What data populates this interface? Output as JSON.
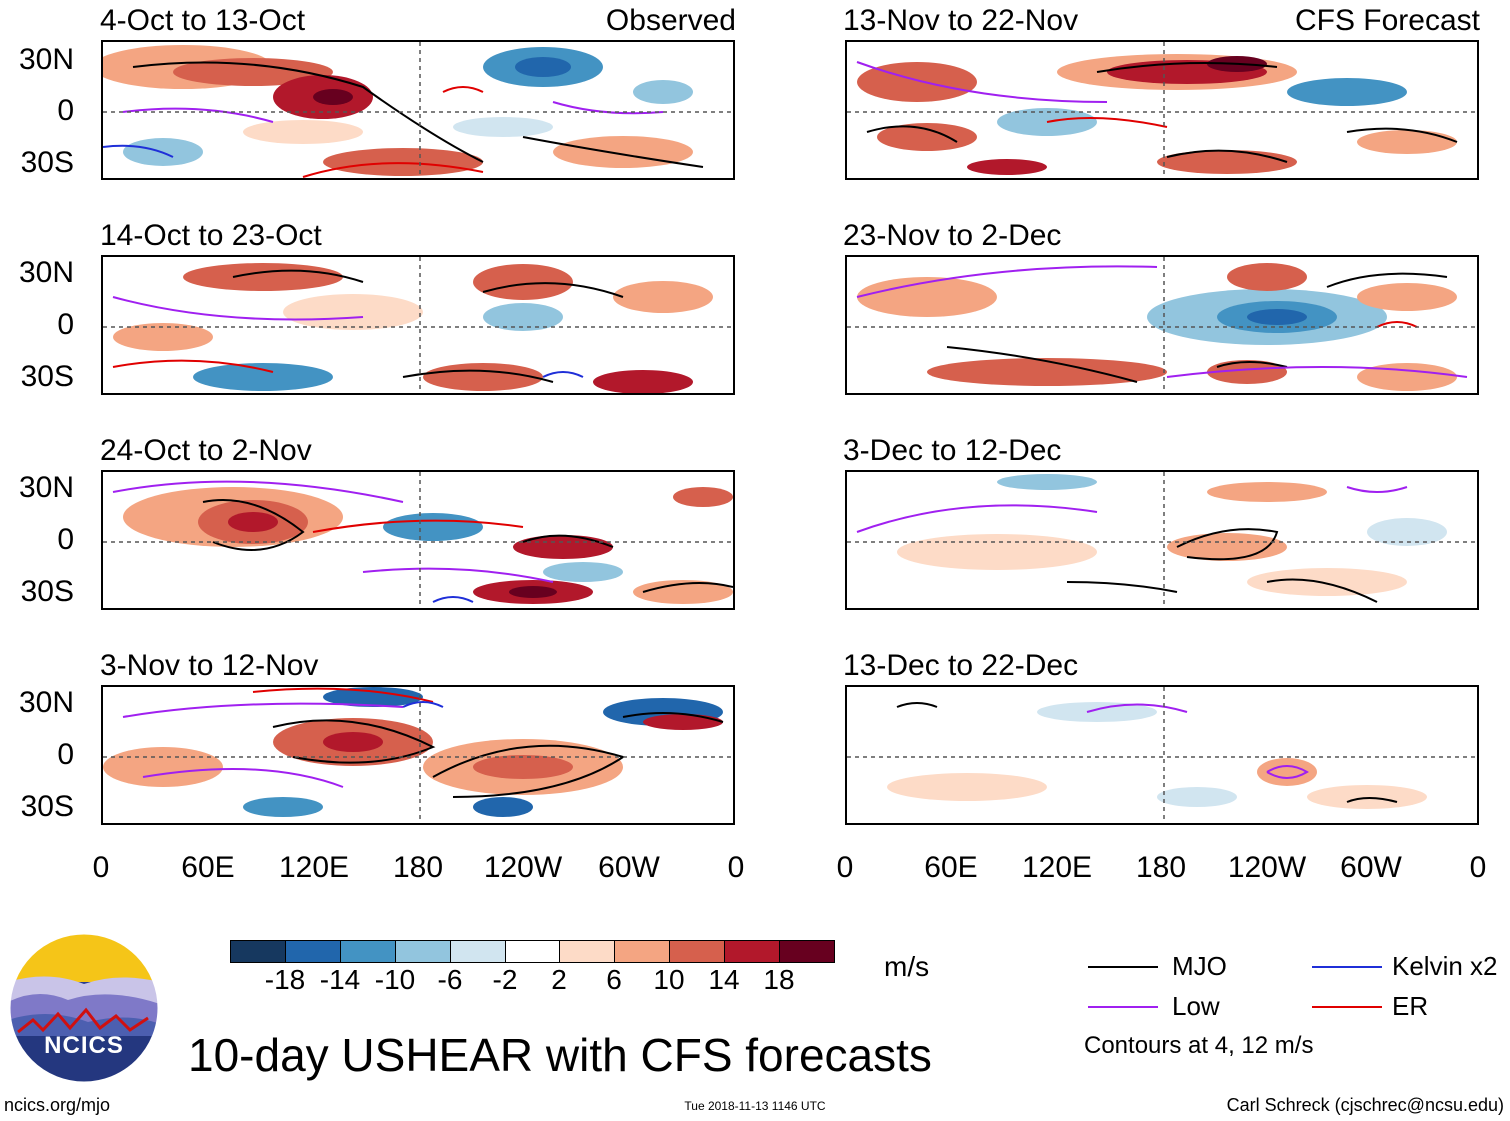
{
  "observed_label": "Observed",
  "forecast_label": "CFS Forecast",
  "panels_left": [
    {
      "title": "4-Oct to 13-Oct"
    },
    {
      "title": "14-Oct to 23-Oct"
    },
    {
      "title": "24-Oct to 2-Nov"
    },
    {
      "title": "3-Nov to 12-Nov"
    }
  ],
  "panels_right": [
    {
      "title": "13-Nov to 22-Nov"
    },
    {
      "title": "23-Nov to 2-Dec"
    },
    {
      "title": "3-Dec to 12-Dec"
    },
    {
      "title": "13-Dec to 22-Dec"
    }
  ],
  "lat_labels": [
    "30N",
    "0",
    "30S"
  ],
  "lon_labels": [
    "0",
    "60E",
    "120E",
    "180",
    "120W",
    "60W",
    "0"
  ],
  "colorbar": {
    "labels": [
      "-18",
      "-14",
      "-10",
      "-6",
      "-2",
      "2",
      "6",
      "10",
      "14",
      "18"
    ],
    "unit": "m/s",
    "colors": [
      "#16385f",
      "#2166ac",
      "#4393c3",
      "#92c5de",
      "#d1e5f0",
      "#ffffff",
      "#fddbc7",
      "#f4a582",
      "#d6604d",
      "#b2182b",
      "#67001f"
    ]
  },
  "legend": {
    "items": [
      {
        "label": "MJO",
        "color": "#000000"
      },
      {
        "label": "Kelvin x2",
        "color": "#1f2fd8"
      },
      {
        "label": "Low",
        "color": "#a020f0"
      },
      {
        "label": "ER",
        "color": "#e00000"
      }
    ],
    "contours_note": "Contours at 4, 12 m/s"
  },
  "title": "10-day USHEAR with CFS forecasts",
  "logo_text": "NCICS",
  "footer": {
    "url": "ncics.org/mjo",
    "timestamp": "Tue 2018-11-13 1146 UTC",
    "credit": "Carl Schreck (cjschrec@ncsu.edu)"
  }
}
